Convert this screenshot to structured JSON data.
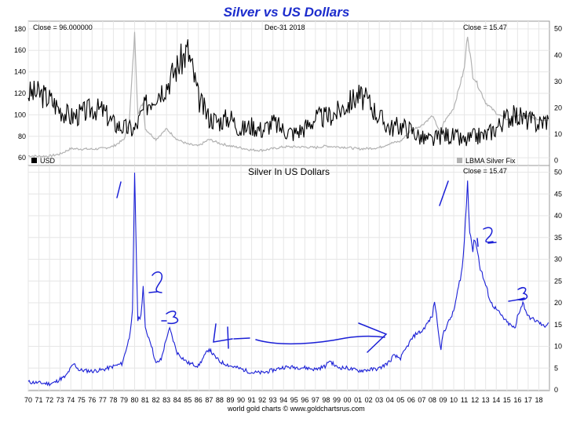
{
  "title": "Silver vs US Dollars",
  "footer": "world gold charts © www.goldchartsrus.com",
  "colors": {
    "silver": "#b2b2b2",
    "usd": "#000000",
    "blue": "#1a1fd6",
    "annotation": "#1a1fd6",
    "grid": "#e6e6e6"
  },
  "chart_data": [
    {
      "type": "line",
      "panel": "top",
      "date_label": "Dec-31  2018",
      "left_readout": "Close = 96.000000",
      "right_readout": "Close = 15.47",
      "left_axis": {
        "ylim": [
          55,
          185
        ],
        "ticks": [
          60,
          80,
          100,
          120,
          140,
          160,
          180
        ]
      },
      "right_axis": {
        "ylim": [
          -1,
          52
        ],
        "ticks": [
          0,
          10,
          20,
          30,
          40,
          50
        ]
      },
      "legend": [
        {
          "name": "USD",
          "color": "#000000",
          "position": "bottom-left"
        },
        {
          "name": "LBMA Silver Fix",
          "color": "#b2b2b2",
          "position": "bottom-right"
        }
      ],
      "series": [
        {
          "name": "USD",
          "axis": "left",
          "points": [
            [
              1970,
              120
            ],
            [
              1971,
              120
            ],
            [
              1972,
              115
            ],
            [
              1973,
              105
            ],
            [
              1974,
              98
            ],
            [
              1975,
              101
            ],
            [
              1976,
              106
            ],
            [
              1977,
              104
            ],
            [
              1978,
              92
            ],
            [
              1979,
              88
            ],
            [
              1980,
              86
            ],
            [
              1981,
              108
            ],
            [
              1982,
              120
            ],
            [
              1983,
              128
            ],
            [
              1984,
              145
            ],
            [
              1985,
              160
            ],
            [
              1985.6,
              135
            ],
            [
              1986,
              115
            ],
            [
              1987,
              97
            ],
            [
              1988,
              94
            ],
            [
              1989,
              98
            ],
            [
              1990,
              86
            ],
            [
              1991,
              90
            ],
            [
              1992,
              86
            ],
            [
              1993,
              93
            ],
            [
              1994,
              86
            ],
            [
              1995,
              83
            ],
            [
              1996,
              88
            ],
            [
              1997,
              97
            ],
            [
              1998,
              98
            ],
            [
              1999,
              102
            ],
            [
              2000,
              110
            ],
            [
              2001,
              118
            ],
            [
              2002,
              112
            ],
            [
              2003,
              98
            ],
            [
              2004,
              88
            ],
            [
              2005,
              90
            ],
            [
              2006,
              86
            ],
            [
              2007,
              78
            ],
            [
              2008,
              76
            ],
            [
              2009,
              82
            ],
            [
              2010,
              80
            ],
            [
              2011,
              75
            ],
            [
              2012,
              80
            ],
            [
              2013,
              81
            ],
            [
              2014,
              88
            ],
            [
              2015,
              98
            ],
            [
              2016,
              99
            ],
            [
              2017,
              95
            ],
            [
              2018,
              92
            ],
            [
              2018.9,
              96
            ]
          ]
        },
        {
          "name": "LBMA Silver Fix",
          "axis": "right",
          "points": [
            [
              1970,
              1.8
            ],
            [
              1971,
              1.6
            ],
            [
              1972,
              1.7
            ],
            [
              1973,
              2.5
            ],
            [
              1974,
              4.5
            ],
            [
              1975,
              4.4
            ],
            [
              1976,
              4.3
            ],
            [
              1977,
              4.6
            ],
            [
              1978,
              5.4
            ],
            [
              1979,
              8.0
            ],
            [
              1979.5,
              15
            ],
            [
              1980,
              48
            ],
            [
              1980.3,
              18
            ],
            [
              1980.8,
              22
            ],
            [
              1981,
              12
            ],
            [
              1982,
              8
            ],
            [
              1983,
              12
            ],
            [
              1984,
              8
            ],
            [
              1985,
              6.2
            ],
            [
              1986,
              5.5
            ],
            [
              1987,
              8
            ],
            [
              1988,
              6.5
            ],
            [
              1989,
              5.5
            ],
            [
              1990,
              4.8
            ],
            [
              1991,
              4
            ],
            [
              1992,
              3.9
            ],
            [
              1993,
              4.5
            ],
            [
              1994,
              5.2
            ],
            [
              1995,
              5.2
            ],
            [
              1996,
              5.1
            ],
            [
              1997,
              4.9
            ],
            [
              1998,
              5.5
            ],
            [
              1999,
              5.2
            ],
            [
              2000,
              5
            ],
            [
              2001,
              4.4
            ],
            [
              2002,
              4.6
            ],
            [
              2003,
              4.9
            ],
            [
              2004,
              6.5
            ],
            [
              2005,
              7.3
            ],
            [
              2006,
              11.5
            ],
            [
              2007,
              13.4
            ],
            [
              2008,
              17
            ],
            [
              2008.8,
              10
            ],
            [
              2009,
              14
            ],
            [
              2010,
              20
            ],
            [
              2011,
              35
            ],
            [
              2011.3,
              48
            ],
            [
              2011.8,
              32
            ],
            [
              2012,
              31
            ],
            [
              2013,
              22
            ],
            [
              2014,
              18
            ],
            [
              2015,
              15.5
            ],
            [
              2016,
              17
            ],
            [
              2017,
              16.8
            ],
            [
              2018,
              15.5
            ],
            [
              2018.9,
              15.47
            ]
          ]
        }
      ]
    },
    {
      "type": "line",
      "panel": "bottom",
      "title": "Silver In US Dollars",
      "right_readout": "Close = 15.47",
      "ylim": [
        0,
        51
      ],
      "yticks": [
        0,
        5,
        10,
        15,
        20,
        25,
        30,
        35,
        40,
        45,
        50
      ],
      "xlabels": [
        "70",
        "71",
        "72",
        "73",
        "74",
        "75",
        "76",
        "77",
        "78",
        "79",
        "80",
        "81",
        "82",
        "83",
        "84",
        "85",
        "86",
        "87",
        "88",
        "89",
        "90",
        "91",
        "92",
        "93",
        "94",
        "95",
        "96",
        "97",
        "98",
        "99",
        "00",
        "01",
        "02",
        "03",
        "04",
        "05",
        "06",
        "07",
        "08",
        "09",
        "10",
        "11",
        "12",
        "13",
        "14",
        "15",
        "16",
        "17",
        "18"
      ],
      "series": [
        {
          "name": "Silver In US Dollars",
          "points": [
            [
              1970,
              1.8
            ],
            [
              1971,
              1.6
            ],
            [
              1972,
              1.4
            ],
            [
              1972.5,
              1.7
            ],
            [
              1973,
              2.5
            ],
            [
              1973.5,
              3
            ],
            [
              1974,
              5
            ],
            [
              1974.3,
              6
            ],
            [
              1974.8,
              4.5
            ],
            [
              1975,
              4.5
            ],
            [
              1976,
              4.3
            ],
            [
              1977,
              4.6
            ],
            [
              1978,
              5.4
            ],
            [
              1978.8,
              6
            ],
            [
              1979,
              7.5
            ],
            [
              1979.5,
              12
            ],
            [
              1979.8,
              18
            ],
            [
              1980,
              49
            ],
            [
              1980.1,
              38
            ],
            [
              1980.3,
              16
            ],
            [
              1980.6,
              17
            ],
            [
              1980.8,
              24
            ],
            [
              1981,
              14
            ],
            [
              1981.5,
              11
            ],
            [
              1982,
              6
            ],
            [
              1982.5,
              7
            ],
            [
              1983,
              12
            ],
            [
              1983.3,
              14
            ],
            [
              1983.8,
              10
            ],
            [
              1984,
              8.5
            ],
            [
              1985,
              6.2
            ],
            [
              1986,
              5.5
            ],
            [
              1987,
              9.5
            ],
            [
              1987.4,
              8
            ],
            [
              1988,
              6.5
            ],
            [
              1989,
              5.5
            ],
            [
              1990,
              4.8
            ],
            [
              1991,
              4
            ],
            [
              1992,
              3.9
            ],
            [
              1993,
              4.5
            ],
            [
              1994,
              5.2
            ],
            [
              1995,
              5.2
            ],
            [
              1996,
              5.1
            ],
            [
              1997,
              4.7
            ],
            [
              1998,
              5.5
            ],
            [
              1998.3,
              6.8
            ],
            [
              1999,
              5.2
            ],
            [
              2000,
              5
            ],
            [
              2001,
              4.4
            ],
            [
              2002,
              4.6
            ],
            [
              2003,
              4.9
            ],
            [
              2004,
              6.5
            ],
            [
              2004.3,
              7.8
            ],
            [
              2005,
              7.3
            ],
            [
              2006,
              11.5
            ],
            [
              2006.5,
              13
            ],
            [
              2007,
              13.4
            ],
            [
              2008,
              17
            ],
            [
              2008.2,
              20.5
            ],
            [
              2008.8,
              9
            ],
            [
              2009,
              13
            ],
            [
              2010,
              18
            ],
            [
              2010.8,
              28
            ],
            [
              2011,
              34
            ],
            [
              2011.3,
              48
            ],
            [
              2011.5,
              37
            ],
            [
              2011.8,
              32
            ],
            [
              2012,
              35
            ],
            [
              2012.5,
              28
            ],
            [
              2013,
              24
            ],
            [
              2013.5,
              20
            ],
            [
              2014,
              18.5
            ],
            [
              2015,
              15.5
            ],
            [
              2015.8,
              14
            ],
            [
              2016,
              17
            ],
            [
              2016.5,
              20
            ],
            [
              2017,
              16.8
            ],
            [
              2018,
              15.5
            ],
            [
              2018.5,
              14.5
            ],
            [
              2018.9,
              15.47
            ]
          ]
        }
      ],
      "annotations": [
        "1",
        "2",
        "3",
        "4",
        "1",
        "2",
        "3"
      ]
    }
  ]
}
